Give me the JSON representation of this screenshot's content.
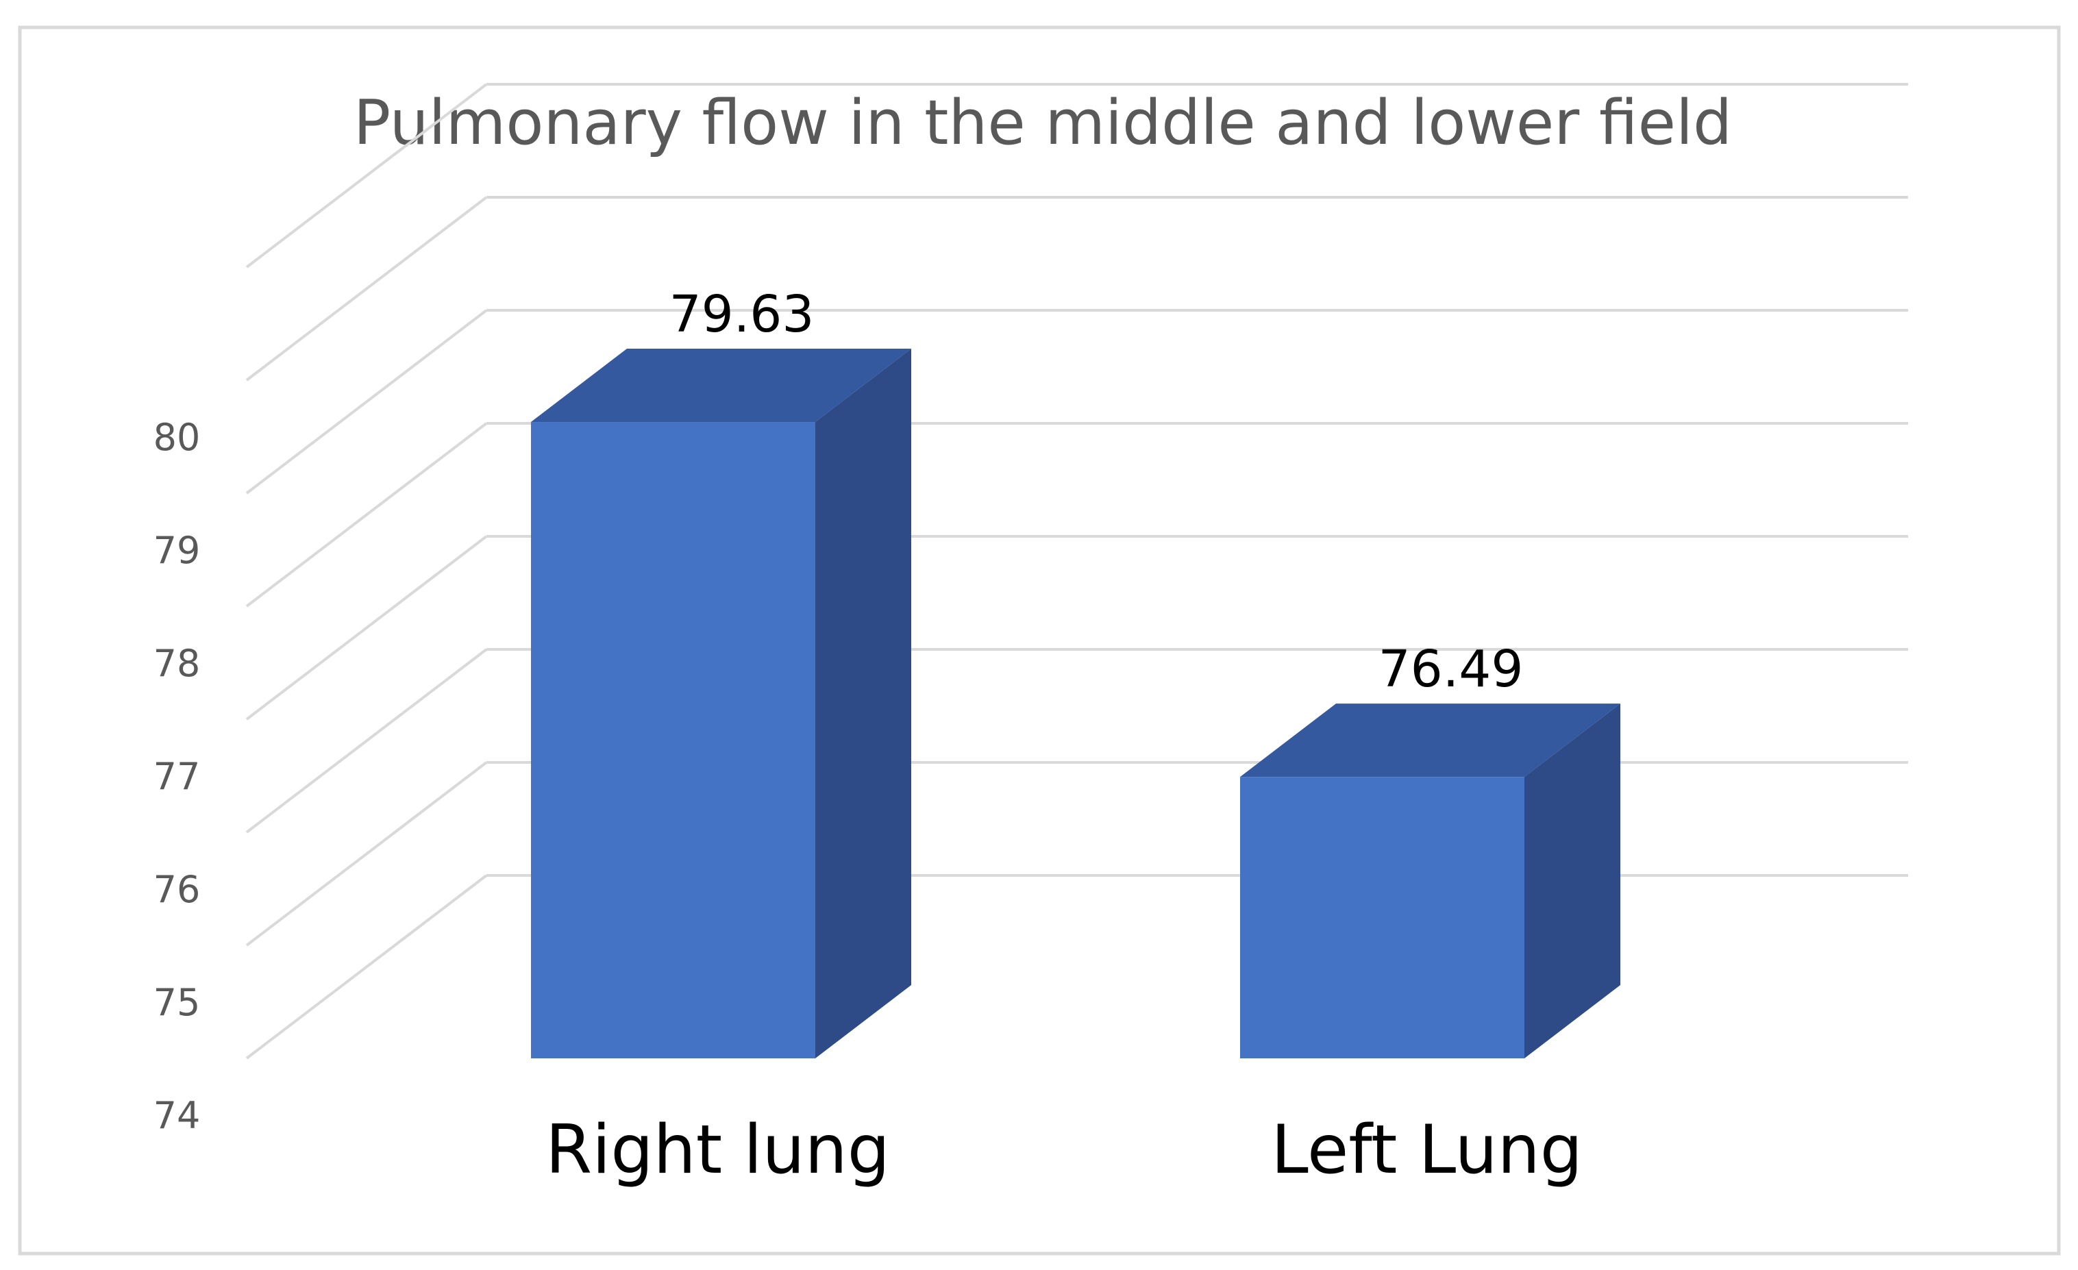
{
  "chart_data": {
    "type": "bar",
    "title": "Pulmonary flow in the middle and lower field",
    "categories": [
      "Right lung",
      "Left Lung"
    ],
    "values": [
      79.63,
      76.49
    ],
    "data_labels": [
      "79.63",
      "76.49"
    ],
    "ylim": [
      74,
      81
    ],
    "y_ticks": [
      "74",
      "75",
      "76",
      "77",
      "78",
      "79",
      "80"
    ],
    "xlabel": "",
    "ylabel": "",
    "grid": true,
    "legend": "none",
    "style": "3d-column",
    "colors": {
      "bar_front": "#4472C4",
      "bar_side": "#2E4A87",
      "bar_top": "#34599E",
      "gridline": "#D9D9D9",
      "frame": "#D9D9D9",
      "title_text": "#595959",
      "tick_text": "#595959",
      "label_text": "#000000"
    }
  }
}
